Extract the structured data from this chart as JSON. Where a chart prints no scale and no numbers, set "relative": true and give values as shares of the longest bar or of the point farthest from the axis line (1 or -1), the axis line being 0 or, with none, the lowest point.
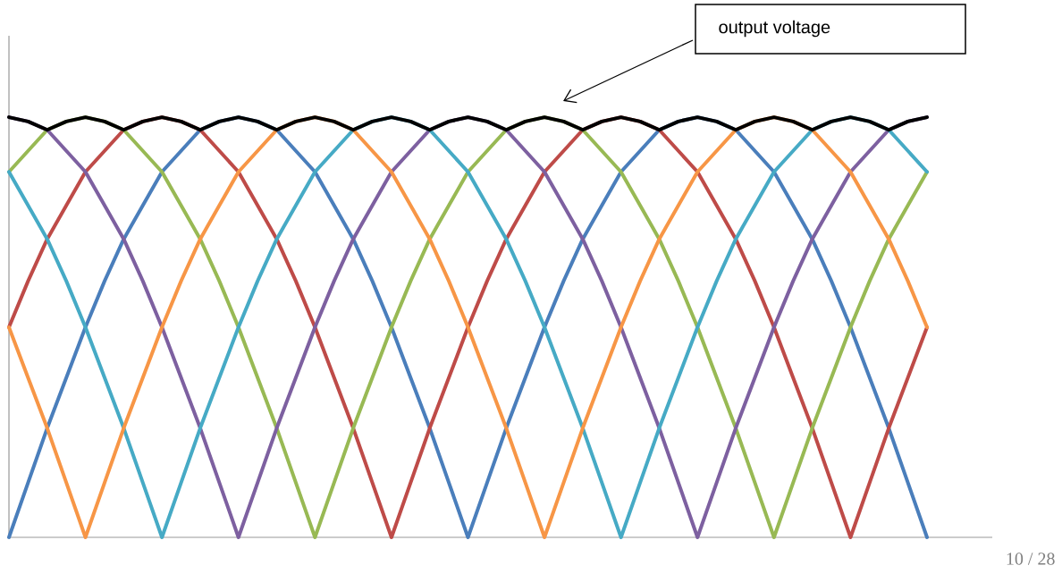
{
  "chart_data": {
    "type": "line",
    "relative": true,
    "marker": "none",
    "line_style": "solid",
    "categories": [
      null,
      null,
      null,
      null,
      null,
      null,
      null,
      null,
      null,
      null,
      null,
      null,
      null,
      null,
      null,
      null,
      null,
      null,
      null,
      null,
      null,
      null,
      null,
      null,
      null,
      null,
      null,
      null,
      null,
      null,
      null,
      null,
      null,
      null,
      null,
      null,
      null,
      null,
      null,
      null,
      null,
      null,
      null,
      null,
      null,
      null,
      null,
      null,
      null
    ],
    "series": [
      {
        "color": "#4a7ebb",
        "values": [
          0,
          0.13,
          0.26,
          0.38,
          0.5,
          0.61,
          0.71,
          0.79,
          0.87,
          0.92,
          0.97,
          0.99,
          1,
          0.99,
          0.97,
          0.92,
          0.87,
          0.79,
          0.71,
          0.61,
          0.5,
          0.38,
          0.26,
          0.13,
          0,
          0.13,
          0.26,
          0.38,
          0.5,
          0.61,
          0.71,
          0.79,
          0.87,
          0.92,
          0.97,
          0.99,
          1,
          0.99,
          0.97,
          0.92,
          0.87,
          0.79,
          0.71,
          0.61,
          0.5,
          0.38,
          0.26,
          0.13,
          0
        ]
      },
      {
        "color": "#be4b48",
        "values": [
          0.5,
          0.61,
          0.71,
          0.79,
          0.87,
          0.92,
          0.97,
          0.99,
          1,
          0.99,
          0.97,
          0.92,
          0.87,
          0.79,
          0.71,
          0.61,
          0.5,
          0.38,
          0.26,
          0.13,
          0,
          0.13,
          0.26,
          0.38,
          0.5,
          0.61,
          0.71,
          0.79,
          0.87,
          0.92,
          0.97,
          0.99,
          1,
          0.99,
          0.97,
          0.92,
          0.87,
          0.79,
          0.71,
          0.61,
          0.5,
          0.38,
          0.26,
          0.13,
          0,
          0.13,
          0.26,
          0.38,
          0.5
        ]
      },
      {
        "color": "#98b954",
        "values": [
          0.87,
          0.92,
          0.97,
          0.99,
          1,
          0.99,
          0.97,
          0.92,
          0.87,
          0.79,
          0.71,
          0.61,
          0.5,
          0.38,
          0.26,
          0.13,
          0,
          0.13,
          0.26,
          0.38,
          0.5,
          0.61,
          0.71,
          0.79,
          0.87,
          0.92,
          0.97,
          0.99,
          1,
          0.99,
          0.97,
          0.92,
          0.87,
          0.79,
          0.71,
          0.61,
          0.5,
          0.38,
          0.26,
          0.13,
          0,
          0.13,
          0.26,
          0.38,
          0.5,
          0.61,
          0.71,
          0.79,
          0.87
        ]
      },
      {
        "color": "#7d60a0",
        "values": [
          1,
          0.99,
          0.97,
          0.92,
          0.87,
          0.79,
          0.71,
          0.61,
          0.5,
          0.38,
          0.26,
          0.13,
          0,
          0.13,
          0.26,
          0.38,
          0.5,
          0.61,
          0.71,
          0.79,
          0.87,
          0.92,
          0.97,
          0.99,
          1,
          0.99,
          0.97,
          0.92,
          0.87,
          0.79,
          0.71,
          0.61,
          0.5,
          0.38,
          0.26,
          0.13,
          0,
          0.13,
          0.26,
          0.38,
          0.5,
          0.61,
          0.71,
          0.79,
          0.87,
          0.92,
          0.97,
          0.99,
          1
        ]
      },
      {
        "color": "#46aac5",
        "values": [
          0.87,
          0.79,
          0.71,
          0.61,
          0.5,
          0.38,
          0.26,
          0.13,
          0,
          0.13,
          0.26,
          0.38,
          0.5,
          0.61,
          0.71,
          0.79,
          0.87,
          0.92,
          0.97,
          0.99,
          1,
          0.99,
          0.97,
          0.92,
          0.87,
          0.79,
          0.71,
          0.61,
          0.5,
          0.38,
          0.26,
          0.13,
          0,
          0.13,
          0.26,
          0.38,
          0.5,
          0.61,
          0.71,
          0.79,
          0.87,
          0.92,
          0.97,
          0.99,
          1,
          0.99,
          0.97,
          0.92,
          0.87
        ]
      },
      {
        "color": "#f79646",
        "values": [
          0.5,
          0.38,
          0.26,
          0.13,
          0,
          0.13,
          0.26,
          0.38,
          0.5,
          0.61,
          0.71,
          0.79,
          0.87,
          0.92,
          0.97,
          0.99,
          1,
          0.99,
          0.97,
          0.92,
          0.87,
          0.79,
          0.71,
          0.61,
          0.5,
          0.38,
          0.26,
          0.13,
          0,
          0.13,
          0.26,
          0.38,
          0.5,
          0.61,
          0.71,
          0.79,
          0.87,
          0.92,
          0.97,
          0.99,
          1,
          0.99,
          0.97,
          0.92,
          0.87,
          0.79,
          0.71,
          0.61,
          0.5
        ]
      },
      {
        "color": "#000000",
        "values": [
          1,
          0.99,
          0.97,
          0.99,
          1,
          0.99,
          0.97,
          0.99,
          1,
          0.99,
          0.97,
          0.99,
          1,
          0.99,
          0.97,
          0.99,
          1,
          0.99,
          0.97,
          0.99,
          1,
          0.99,
          0.97,
          0.99,
          1,
          0.99,
          0.97,
          0.99,
          1,
          0.99,
          0.97,
          0.99,
          1,
          0.99,
          0.97,
          0.99,
          1,
          0.99,
          0.97,
          0.99,
          1,
          0.99,
          0.97,
          0.99,
          1,
          0.99,
          0.97,
          0.99,
          1
        ]
      }
    ],
    "annotations": [
      "output voltage",
      "10 / 28"
    ]
  }
}
